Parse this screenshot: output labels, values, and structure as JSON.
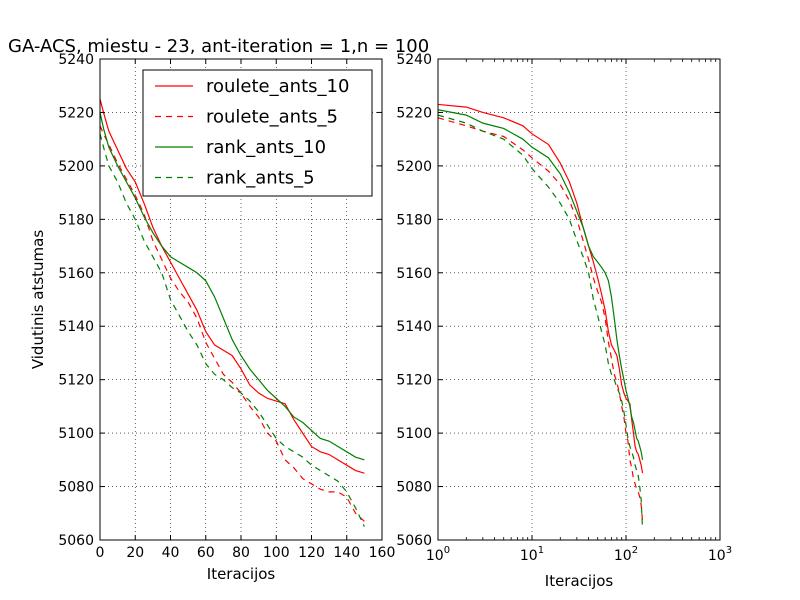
{
  "figure": {
    "title": "GA-ACS, miestu - 23, ant-iteration = 1,n = 100"
  },
  "colors": {
    "red": "#ff0000",
    "green": "#008000",
    "grid": "#000000"
  },
  "chart_data": [
    {
      "type": "line",
      "xscale": "linear",
      "xlim": [
        0,
        160
      ],
      "ylim": [
        5060,
        5240
      ],
      "xticks": [
        0,
        20,
        40,
        60,
        80,
        100,
        120,
        140,
        160
      ],
      "yticks": [
        5060,
        5080,
        5100,
        5120,
        5140,
        5160,
        5180,
        5200,
        5220,
        5240
      ],
      "xlabel": "Iteracijos",
      "ylabel": "Vidutinis atstumas",
      "grid": true,
      "legend": "top-right",
      "series": [
        {
          "name": "roulete_ants_10",
          "color": "#ff0000",
          "style": "solid",
          "x": [
            0,
            2,
            5,
            10,
            15,
            20,
            25,
            30,
            35,
            40,
            45,
            50,
            55,
            60,
            65,
            70,
            75,
            80,
            85,
            90,
            95,
            100,
            105,
            110,
            115,
            120,
            125,
            130,
            135,
            140,
            145,
            150
          ],
          "y": [
            5225,
            5220,
            5213,
            5206,
            5199,
            5194,
            5186,
            5177,
            5170,
            5164,
            5158,
            5152,
            5146,
            5138,
            5133,
            5131,
            5129,
            5124,
            5118,
            5115,
            5113,
            5112,
            5111,
            5105,
            5100,
            5095,
            5093,
            5092,
            5090,
            5088,
            5086,
            5085
          ]
        },
        {
          "name": "roulete_ants_5",
          "color": "#ff0000",
          "style": "dashed",
          "x": [
            0,
            2,
            5,
            10,
            15,
            20,
            25,
            30,
            35,
            40,
            45,
            50,
            55,
            60,
            65,
            70,
            75,
            80,
            85,
            90,
            95,
            100,
            105,
            110,
            115,
            120,
            125,
            130,
            135,
            140,
            145,
            150
          ],
          "y": [
            5215,
            5212,
            5208,
            5201,
            5195,
            5189,
            5182,
            5172,
            5165,
            5158,
            5153,
            5149,
            5143,
            5134,
            5128,
            5122,
            5119,
            5115,
            5110,
            5106,
            5100,
            5097,
            5090,
            5087,
            5083,
            5081,
            5079,
            5078,
            5078,
            5076,
            5070,
            5067
          ]
        },
        {
          "name": "rank_ants_10",
          "color": "#008000",
          "style": "solid",
          "x": [
            0,
            2,
            5,
            10,
            15,
            20,
            25,
            30,
            35,
            40,
            45,
            50,
            55,
            60,
            65,
            70,
            75,
            80,
            85,
            90,
            95,
            100,
            105,
            110,
            115,
            120,
            125,
            130,
            135,
            140,
            145,
            150
          ],
          "y": [
            5220,
            5214,
            5207,
            5200,
            5194,
            5188,
            5181,
            5175,
            5170,
            5166,
            5164,
            5162,
            5160,
            5157,
            5151,
            5143,
            5135,
            5129,
            5124,
            5120,
            5116,
            5113,
            5110,
            5106,
            5104,
            5101,
            5098,
            5097,
            5095,
            5093,
            5091,
            5090
          ]
        },
        {
          "name": "rank_ants_5",
          "color": "#008000",
          "style": "dashed",
          "x": [
            0,
            2,
            5,
            10,
            15,
            20,
            25,
            30,
            35,
            40,
            45,
            50,
            55,
            60,
            65,
            70,
            75,
            80,
            85,
            90,
            95,
            100,
            105,
            110,
            115,
            120,
            125,
            130,
            135,
            140,
            145,
            150
          ],
          "y": [
            5212,
            5207,
            5200,
            5194,
            5186,
            5180,
            5172,
            5166,
            5160,
            5150,
            5144,
            5138,
            5133,
            5126,
            5122,
            5120,
            5117,
            5115,
            5112,
            5108,
            5103,
            5098,
            5095,
            5093,
            5091,
            5088,
            5086,
            5084,
            5082,
            5078,
            5072,
            5065
          ]
        }
      ]
    },
    {
      "type": "line",
      "xscale": "log",
      "xlim": [
        1,
        1000
      ],
      "ylim": [
        5060,
        5240
      ],
      "xticks": [
        1,
        10,
        100,
        1000
      ],
      "xticklabels": [
        "10",
        "10",
        "10",
        "10"
      ],
      "xtickexponents": [
        "0",
        "1",
        "2",
        "3"
      ],
      "yticks": [
        5060,
        5080,
        5100,
        5120,
        5140,
        5160,
        5180,
        5200,
        5220,
        5240
      ],
      "xlabel": "Iteracijos",
      "ylabel": "",
      "grid": true,
      "series": [
        {
          "name": "",
          "color": "#ff0000",
          "style": "solid",
          "x": [
            1,
            2,
            3,
            5,
            8,
            10,
            15,
            20,
            25,
            30,
            35,
            40,
            45,
            50,
            55,
            60,
            65,
            70,
            75,
            80,
            85,
            90,
            95,
            100,
            105,
            110,
            115,
            120,
            125,
            130,
            135,
            140,
            145,
            150
          ],
          "y": [
            5223,
            5222,
            5220,
            5218,
            5215,
            5212,
            5208,
            5201,
            5194,
            5186,
            5177,
            5170,
            5164,
            5158,
            5152,
            5146,
            5138,
            5133,
            5131,
            5129,
            5124,
            5118,
            5115,
            5113,
            5112,
            5111,
            5105,
            5100,
            5095,
            5093,
            5092,
            5090,
            5088,
            5085
          ]
        },
        {
          "name": "",
          "color": "#ff0000",
          "style": "dashed",
          "x": [
            1,
            2,
            3,
            5,
            8,
            10,
            15,
            20,
            25,
            30,
            35,
            40,
            45,
            50,
            55,
            60,
            65,
            70,
            75,
            80,
            85,
            90,
            95,
            100,
            105,
            110,
            115,
            120,
            125,
            130,
            135,
            140,
            145,
            150
          ],
          "y": [
            5218,
            5215,
            5213,
            5211,
            5206,
            5203,
            5198,
            5193,
            5187,
            5180,
            5172,
            5165,
            5158,
            5153,
            5149,
            5143,
            5134,
            5128,
            5122,
            5119,
            5115,
            5110,
            5106,
            5100,
            5097,
            5090,
            5087,
            5083,
            5081,
            5079,
            5078,
            5076,
            5073,
            5067
          ]
        },
        {
          "name": "",
          "color": "#008000",
          "style": "solid",
          "x": [
            1,
            2,
            3,
            5,
            8,
            10,
            15,
            20,
            25,
            30,
            35,
            40,
            45,
            50,
            55,
            60,
            65,
            70,
            75,
            80,
            85,
            90,
            95,
            100,
            105,
            110,
            115,
            120,
            125,
            130,
            135,
            140,
            145,
            150
          ],
          "y": [
            5221,
            5219,
            5216,
            5214,
            5210,
            5207,
            5203,
            5197,
            5190,
            5183,
            5177,
            5170,
            5166,
            5164,
            5162,
            5160,
            5157,
            5151,
            5143,
            5135,
            5129,
            5124,
            5120,
            5116,
            5113,
            5110,
            5106,
            5104,
            5101,
            5098,
            5097,
            5095,
            5093,
            5090
          ]
        },
        {
          "name": "",
          "color": "#008000",
          "style": "dashed",
          "x": [
            1,
            2,
            3,
            5,
            8,
            10,
            15,
            20,
            25,
            30,
            35,
            40,
            45,
            50,
            55,
            60,
            65,
            70,
            75,
            80,
            85,
            90,
            95,
            100,
            105,
            110,
            115,
            120,
            125,
            130,
            135,
            140,
            145,
            150
          ],
          "y": [
            5219,
            5216,
            5213,
            5210,
            5204,
            5199,
            5192,
            5186,
            5180,
            5172,
            5166,
            5160,
            5150,
            5144,
            5138,
            5133,
            5126,
            5122,
            5120,
            5117,
            5115,
            5112,
            5108,
            5103,
            5098,
            5095,
            5093,
            5091,
            5088,
            5086,
            5084,
            5080,
            5075,
            5064
          ]
        }
      ]
    }
  ]
}
